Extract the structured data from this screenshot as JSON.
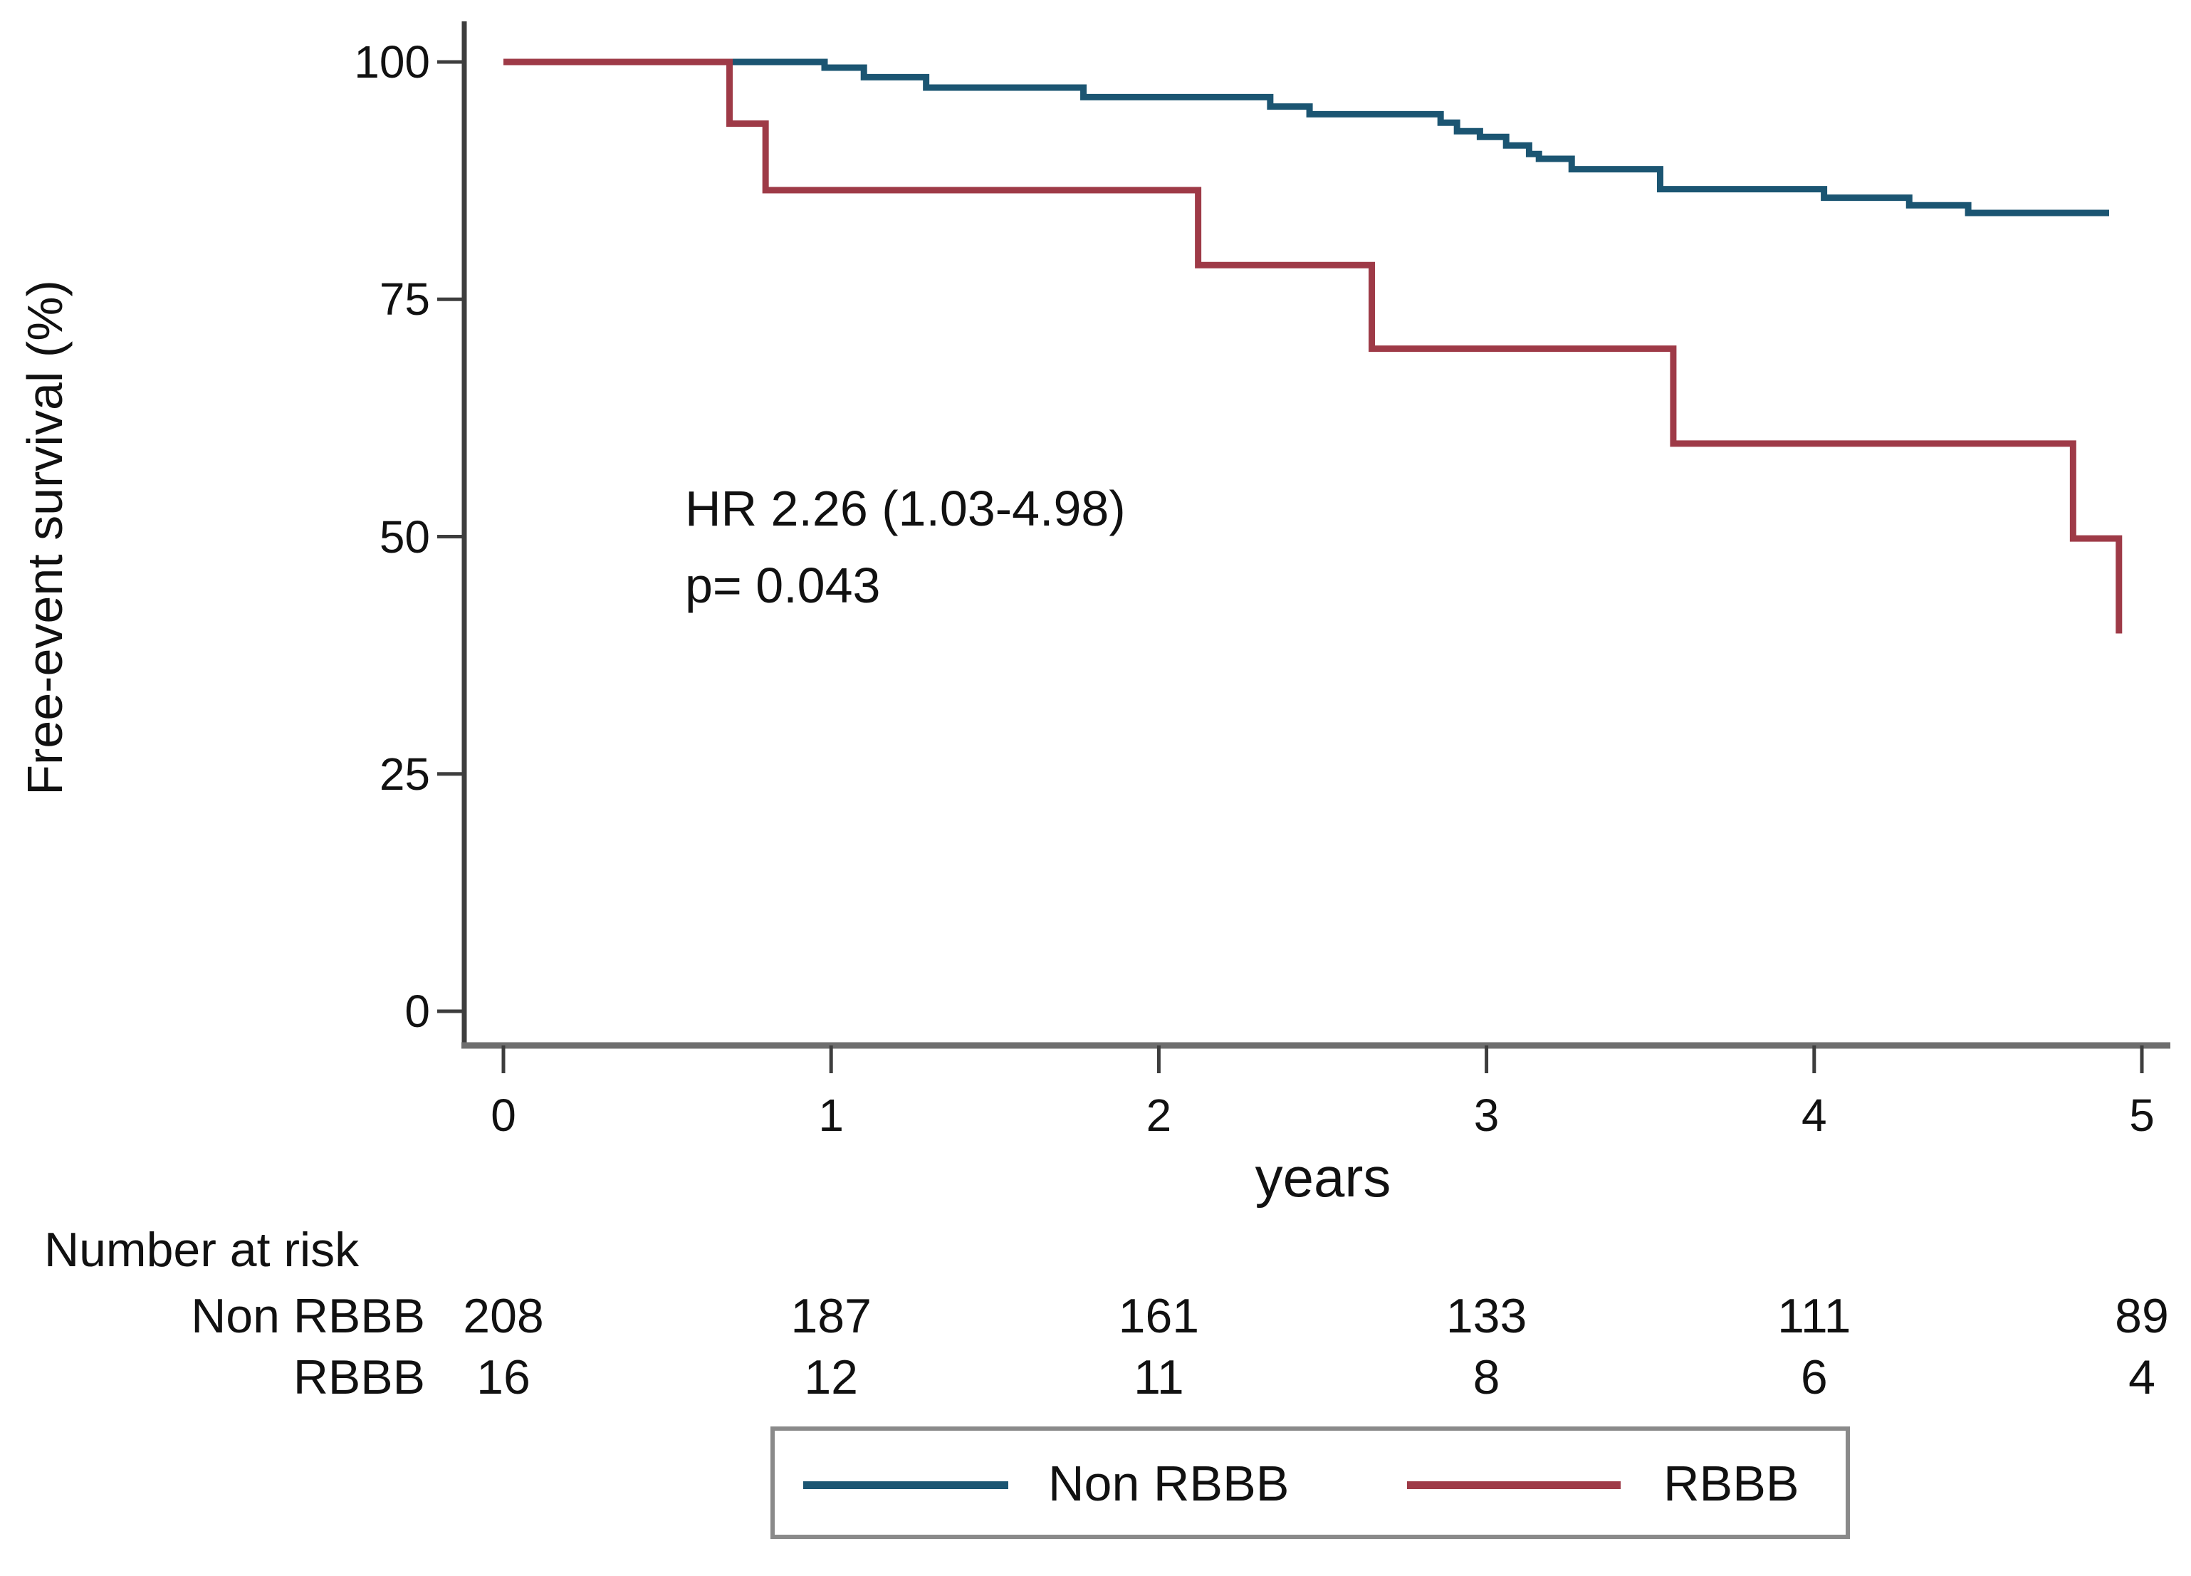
{
  "chart_data": {
    "type": "line",
    "subtype": "kaplan-meier-step",
    "title": "",
    "xlabel": "years",
    "ylabel": "Free-event survival (%)",
    "xlim": [
      0,
      5
    ],
    "ylim": [
      0,
      100
    ],
    "x_ticks": [
      0,
      1,
      2,
      3,
      4,
      5
    ],
    "y_ticks": [
      100,
      75,
      50,
      25,
      0
    ],
    "grid": false,
    "legend_position": "bottom",
    "annotation_lines": [
      "HR 2.26 (1.03-4.98)",
      "p= 0.043"
    ],
    "series": [
      {
        "name": "Non RBBB",
        "color": "#1b5572",
        "points": [
          [
            0,
            100
          ],
          [
            0.98,
            99.4
          ],
          [
            1.1,
            98.4
          ],
          [
            1.29,
            97.3
          ],
          [
            1.77,
            96.3
          ],
          [
            2.34,
            95.3
          ],
          [
            2.46,
            94.5
          ],
          [
            2.86,
            93.6
          ],
          [
            2.91,
            92.7
          ],
          [
            2.98,
            92.1
          ],
          [
            3.06,
            91.2
          ],
          [
            3.13,
            90.3
          ],
          [
            3.16,
            89.8
          ],
          [
            3.26,
            88.7
          ],
          [
            3.53,
            86.6
          ],
          [
            4.03,
            85.7
          ],
          [
            4.29,
            84.9
          ],
          [
            4.47,
            84.1
          ],
          [
            4.9,
            84.1
          ]
        ]
      },
      {
        "name": "RBBB",
        "color": "#9e3a47",
        "points": [
          [
            0,
            100
          ],
          [
            0.69,
            93.5
          ],
          [
            0.8,
            86.5
          ],
          [
            2.12,
            78.6
          ],
          [
            2.65,
            69.8
          ],
          [
            3.57,
            59.8
          ],
          [
            4.79,
            49.8
          ],
          [
            4.93,
            39.8
          ]
        ]
      }
    ]
  },
  "number_at_risk": {
    "title": "Number at risk",
    "times": [
      0,
      1,
      2,
      3,
      4,
      5
    ],
    "rows": [
      {
        "label": "Non RBBB",
        "values": [
          208,
          187,
          161,
          133,
          111,
          89
        ]
      },
      {
        "label": "RBBB",
        "values": [
          16,
          12,
          11,
          8,
          6,
          4
        ]
      }
    ]
  },
  "legend": {
    "entries": [
      {
        "label": "Non RBBB",
        "color": "#1b5572"
      },
      {
        "label": "RBBB",
        "color": "#9e3a47"
      }
    ]
  },
  "style_colors": {
    "y_axis": "#3d3d3d",
    "x_axis": "#6e6e6e",
    "tick": "#3d3d3d",
    "legend_border": "#8a8a8a",
    "text": "#111111"
  }
}
